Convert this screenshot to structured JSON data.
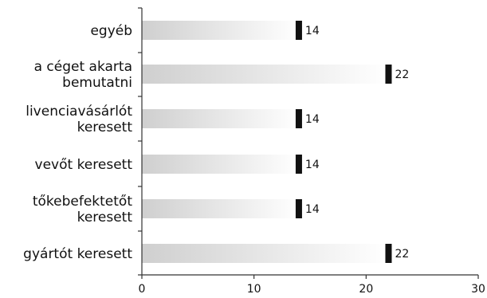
{
  "chart_data": {
    "type": "bar",
    "orientation": "horizontal",
    "categories": [
      [
        "egyéb"
      ],
      [
        "a céget akarta",
        "bemutatni"
      ],
      [
        "livenciavásárlót",
        "keresett"
      ],
      [
        "vevőt keresett"
      ],
      [
        "tőkebefektetőt",
        "keresett"
      ],
      [
        "gyártót keresett"
      ]
    ],
    "values": [
      14,
      22,
      14,
      14,
      14,
      22
    ],
    "value_labels": [
      "14",
      "22",
      "14",
      "14",
      "14",
      "22"
    ],
    "xlim": [
      0,
      30
    ],
    "xticks": [
      0,
      10,
      20,
      30
    ],
    "xtick_labels": [
      "0",
      "10",
      "20",
      "30"
    ],
    "title": "",
    "xlabel": "",
    "ylabel": "",
    "grid": false,
    "legend": "none",
    "colors": {
      "bar_start": "#cfcfcf",
      "bar_end": "#ffffff",
      "bar_cap": "#111111",
      "axis": "#333333",
      "text": "#111111"
    }
  }
}
